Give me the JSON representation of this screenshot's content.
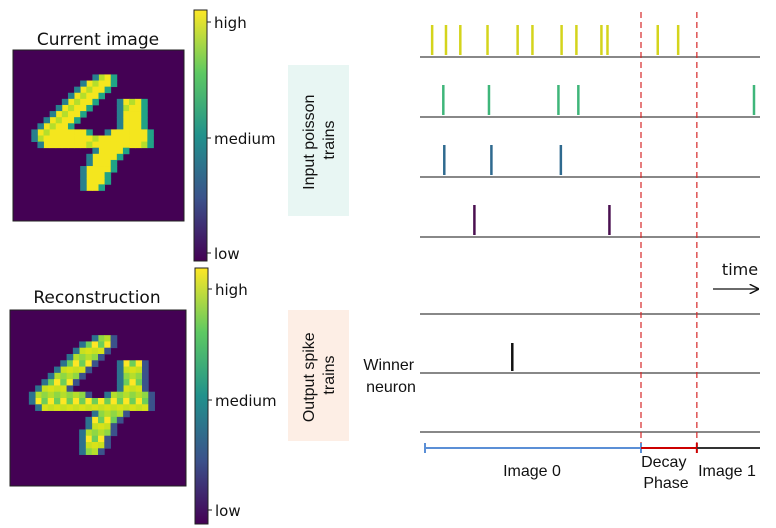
{
  "panels": {
    "current": {
      "title": "Current image"
    },
    "reconstruction": {
      "title": "Reconstruction"
    }
  },
  "colorbar": {
    "ticks": [
      "high",
      "medium",
      "low"
    ],
    "stops": [
      "#440154",
      "#3b528b",
      "#21918c",
      "#5ec962",
      "#fde725"
    ]
  },
  "boxes": {
    "input": {
      "label": "Input poisson trains",
      "bg": "#e8f6f3"
    },
    "output": {
      "label": "Output spike trains",
      "bg": "#fdeee5"
    }
  },
  "raster": {
    "time_label": "time",
    "winner_label": "Winner neuron",
    "phase_labels": [
      "Image 0",
      "Decay Phase",
      "Image 1"
    ],
    "colors": {
      "image0": "#5b8fd6",
      "decay": "#cc0000",
      "image1": "#333333",
      "divider": "#d62728"
    },
    "input_trains": [
      {
        "color": "#d4d41c",
        "spikes": [
          0.05,
          0.107,
          0.166,
          0.278,
          0.402,
          0.463,
          0.583,
          0.644,
          0.747,
          0.772,
          0.979,
          1.063
        ]
      },
      {
        "color": "#3fb67a",
        "spikes": [
          0.096,
          0.284,
          0.57,
          0.652,
          1.4
        ]
      },
      {
        "color": "#2f6a8f",
        "spikes": [
          0.1,
          0.294,
          0.58
        ]
      },
      {
        "color": "#4a1050",
        "spikes": [
          0.224,
          0.78
        ]
      }
    ],
    "output_trains": [
      {
        "color": "#111111",
        "spikes": []
      },
      {
        "color": "#111111",
        "spikes": [
          0.38
        ]
      },
      {
        "color": "#111111",
        "spikes": []
      }
    ],
    "phases": {
      "image0_end": 0.91,
      "decay_end": 1.14
    }
  }
}
